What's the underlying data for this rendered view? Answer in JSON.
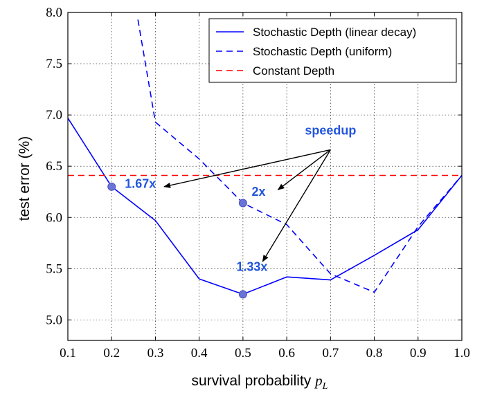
{
  "chart_data": {
    "type": "line",
    "xlabel": "survival probability",
    "xlabel_symbol": "p",
    "xlabel_subscript": "L",
    "ylabel": "test error (%)",
    "xlim": [
      0.1,
      1.0
    ],
    "ylim": [
      4.8,
      8.0
    ],
    "xticks": [
      "0.1",
      "0.2",
      "0.3",
      "0.4",
      "0.5",
      "0.6",
      "0.7",
      "0.8",
      "0.9",
      "1.0"
    ],
    "yticks": [
      "5.0",
      "5.5",
      "6.0",
      "6.5",
      "7.0",
      "7.5",
      "8.0"
    ],
    "grid": true,
    "legend_position": "top-right",
    "series": [
      {
        "name": "Stochastic Depth (linear decay)",
        "style": "solid",
        "color": "#0000ff",
        "x": [
          0.1,
          0.2,
          0.3,
          0.4,
          0.5,
          0.6,
          0.7,
          0.8,
          0.9,
          1.0
        ],
        "y": [
          6.97,
          6.3,
          5.97,
          5.4,
          5.25,
          5.42,
          5.39,
          5.63,
          5.88,
          6.41
        ]
      },
      {
        "name": "Stochastic Depth (uniform)",
        "style": "dashed",
        "color": "#0000ff",
        "x": [
          0.26,
          0.3,
          0.4,
          0.5,
          0.6,
          0.7,
          0.8,
          0.9,
          1.0
        ],
        "y": [
          7.93,
          6.93,
          6.57,
          6.14,
          5.93,
          5.45,
          5.27,
          5.91,
          6.41
        ]
      },
      {
        "name": "Constant Depth",
        "style": "dashed",
        "color": "#ff0000",
        "x": [
          0.1,
          1.0
        ],
        "y": [
          6.41,
          6.41
        ]
      }
    ],
    "markers": [
      {
        "x": 0.2,
        "y": 6.3
      },
      {
        "x": 0.5,
        "y": 6.14
      },
      {
        "x": 0.5,
        "y": 5.25
      }
    ],
    "annotations": {
      "title": {
        "text": "speedup",
        "x": 0.7,
        "y": 6.81,
        "color": "#2255dd"
      },
      "arrow_tail": {
        "x": 0.7,
        "y": 6.66
      },
      "labels": [
        {
          "text": "1.67x",
          "x": 0.23,
          "y": 6.29,
          "arrow_to": {
            "x": 0.32,
            "y": 6.3
          },
          "color": "#2255dd"
        },
        {
          "text": "2x",
          "x": 0.52,
          "y": 6.21,
          "arrow_to": {
            "x": 0.58,
            "y": 6.27
          },
          "color": "#2255dd"
        },
        {
          "text": "1.33x",
          "x": 0.485,
          "y": 5.48,
          "arrow_to": {
            "x": 0.545,
            "y": 5.57
          },
          "color": "#2255dd"
        }
      ]
    }
  }
}
